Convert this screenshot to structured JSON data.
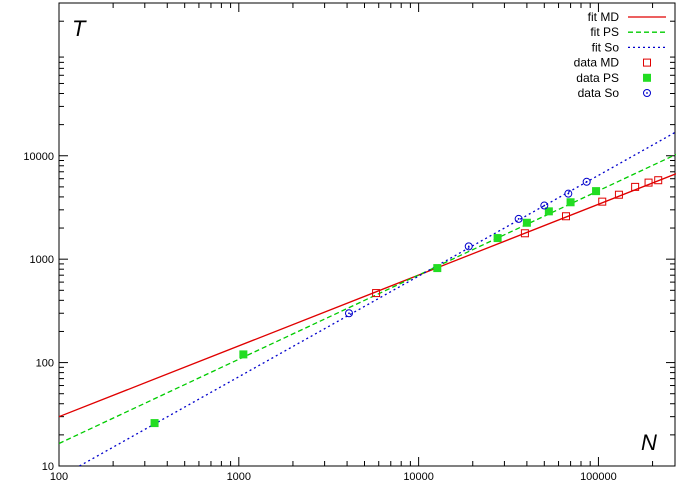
{
  "chart_data": {
    "type": "scatter",
    "title": "",
    "xlabel": "N",
    "ylabel": "T",
    "xscale": "log",
    "yscale": "log",
    "xlim": [
      100,
      270000
    ],
    "ylim": [
      10,
      300000
    ],
    "grid": false,
    "legend_position": "top-right",
    "xticks": [
      {
        "value": 100,
        "label": "100"
      },
      {
        "value": 1000,
        "label": "1000"
      },
      {
        "value": 10000,
        "label": "10000"
      },
      {
        "value": 100000,
        "label": "100000"
      }
    ],
    "yticks": [
      {
        "value": 10,
        "label": "10"
      },
      {
        "value": 100,
        "label": "100"
      },
      {
        "value": 1000,
        "label": "1000"
      },
      {
        "value": 10000,
        "label": "10000"
      }
    ],
    "fits": [
      {
        "name": "fit MD",
        "color": "#e00000",
        "dash": "solid",
        "points": [
          [
            100,
            30
          ],
          [
            270000,
            6700
          ]
        ]
      },
      {
        "name": "fit PS",
        "color": "#00cc00",
        "dash": "dashed",
        "points": [
          [
            100,
            16.5
          ],
          [
            270000,
            10300
          ]
        ]
      },
      {
        "name": "fit So",
        "color": "#0000cc",
        "dash": "dotted",
        "points": [
          [
            130,
            10
          ],
          [
            270000,
            17000
          ]
        ]
      }
    ],
    "series": [
      {
        "name": "data MD",
        "color": "#e00000",
        "marker": "open-square",
        "points": [
          [
            5800,
            470
          ],
          [
            39000,
            1780
          ],
          [
            66000,
            2600
          ],
          [
            105000,
            3600
          ],
          [
            130000,
            4200
          ],
          [
            160000,
            5000
          ],
          [
            190000,
            5500
          ],
          [
            215000,
            5800
          ]
        ]
      },
      {
        "name": "data PS",
        "color": "#22dd22",
        "marker": "filled-square",
        "points": [
          [
            340,
            26
          ],
          [
            1060,
            120
          ],
          [
            12700,
            820
          ],
          [
            27500,
            1600
          ],
          [
            40000,
            2250
          ],
          [
            53000,
            2900
          ],
          [
            70000,
            3550
          ],
          [
            97000,
            4550
          ]
        ]
      },
      {
        "name": "data So",
        "color": "#0000cc",
        "marker": "open-circle-dot",
        "points": [
          [
            4100,
            300
          ],
          [
            19000,
            1330
          ],
          [
            36000,
            2450
          ],
          [
            50000,
            3300
          ],
          [
            68000,
            4300
          ],
          [
            86000,
            5600
          ]
        ]
      }
    ]
  }
}
